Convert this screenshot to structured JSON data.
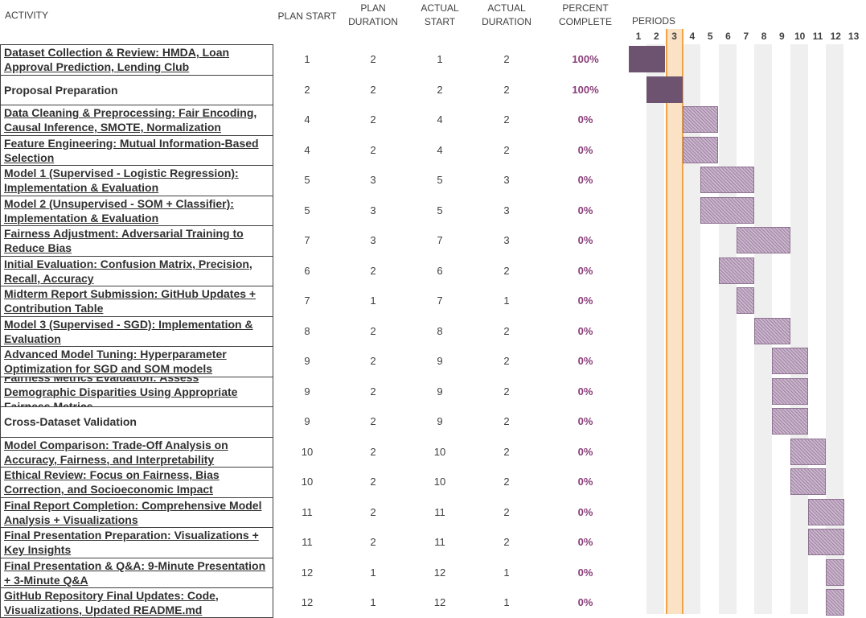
{
  "headers": {
    "activity": "ACTIVITY",
    "plan_start": "PLAN START",
    "plan_duration": "PLAN DURATION",
    "actual_start": "ACTUAL START",
    "actual_duration": "ACTUAL DURATION",
    "percent_complete": "PERCENT COMPLETE",
    "periods": "PERIODS"
  },
  "periods": [
    "1",
    "2",
    "3",
    "4",
    "5",
    "6",
    "7",
    "8",
    "9",
    "10",
    "11",
    "12",
    "13"
  ],
  "highlight_period": 3,
  "colors": {
    "complete_bar": "#6e5370",
    "plan_bar": "#cbb5cd",
    "highlight": "#fbe2c4",
    "highlight_border": "#f0a347",
    "percent_text": "#8a3e7a"
  },
  "rows": [
    {
      "activity": "Dataset Collection & Review: HMDA, Loan Approval Prediction, Lending Club",
      "plan_start": "1",
      "plan_duration": "2",
      "actual_start": "1",
      "actual_duration": "2",
      "percent": "100%"
    },
    {
      "activity": "Proposal Preparation",
      "plan_start": "2",
      "plan_duration": "2",
      "actual_start": "2",
      "actual_duration": "2",
      "percent": "100%"
    },
    {
      "activity": "Data Cleaning & Preprocessing: Fair Encoding, Causal Inference, SMOTE, Normalization",
      "plan_start": "4",
      "plan_duration": "2",
      "actual_start": "4",
      "actual_duration": "2",
      "percent": "0%"
    },
    {
      "activity": "Feature Engineering: Mutual Information-Based Selection",
      "plan_start": "4",
      "plan_duration": "2",
      "actual_start": "4",
      "actual_duration": "2",
      "percent": "0%"
    },
    {
      "activity": "Model 1 (Supervised - Logistic Regression): Implementation & Evaluation",
      "plan_start": "5",
      "plan_duration": "3",
      "actual_start": "5",
      "actual_duration": "3",
      "percent": "0%"
    },
    {
      "activity": "Model 2 (Unsupervised - SOM + Classifier): Implementation & Evaluation",
      "plan_start": "5",
      "plan_duration": "3",
      "actual_start": "5",
      "actual_duration": "3",
      "percent": "0%"
    },
    {
      "activity": "Fairness Adjustment: Adversarial Training to Reduce Bias",
      "plan_start": "7",
      "plan_duration": "3",
      "actual_start": "7",
      "actual_duration": "3",
      "percent": "0%"
    },
    {
      "activity": "Initial Evaluation: Confusion Matrix, Precision, Recall, Accuracy",
      "plan_start": "6",
      "plan_duration": "2",
      "actual_start": "6",
      "actual_duration": "2",
      "percent": "0%"
    },
    {
      "activity": "Midterm Report Submission: GitHub Updates + Contribution Table",
      "plan_start": "7",
      "plan_duration": "1",
      "actual_start": "7",
      "actual_duration": "1",
      "percent": "0%"
    },
    {
      "activity": "Model 3 (Supervised - SGD): Implementation & Evaluation",
      "plan_start": "8",
      "plan_duration": "2",
      "actual_start": "8",
      "actual_duration": "2",
      "percent": "0%"
    },
    {
      "activity": "Advanced Model Tuning: Hyperparameter Optimization for SGD and SOM models",
      "plan_start": "9",
      "plan_duration": "2",
      "actual_start": "9",
      "actual_duration": "2",
      "percent": "0%"
    },
    {
      "activity": "Fairness Metrics Evaluation: Assess Demographic Disparities Using Appropriate Fairness Metrics",
      "plan_start": "9",
      "plan_duration": "2",
      "actual_start": "9",
      "actual_duration": "2",
      "percent": "0%"
    },
    {
      "activity": "Cross-Dataset Validation",
      "plan_start": "9",
      "plan_duration": "2",
      "actual_start": "9",
      "actual_duration": "2",
      "percent": "0%"
    },
    {
      "activity": "Model Comparison: Trade-Off Analysis on Accuracy, Fairness, and Interpretability",
      "plan_start": "10",
      "plan_duration": "2",
      "actual_start": "10",
      "actual_duration": "2",
      "percent": "0%"
    },
    {
      "activity": "Ethical Review: Focus on Fairness, Bias Correction, and Socioeconomic Impact",
      "plan_start": "10",
      "plan_duration": "2",
      "actual_start": "10",
      "actual_duration": "2",
      "percent": "0%"
    },
    {
      "activity": "Final Report Completion: Comprehensive Model Analysis + Visualizations",
      "plan_start": "11",
      "plan_duration": "2",
      "actual_start": "11",
      "actual_duration": "2",
      "percent": "0%"
    },
    {
      "activity": "Final Presentation Preparation: Visualizations + Key Insights",
      "plan_start": "11",
      "plan_duration": "2",
      "actual_start": "11",
      "actual_duration": "2",
      "percent": "0%"
    },
    {
      "activity": "Final Presentation & Q&A: 9-Minute Presentation + 3-Minute Q&A",
      "plan_start": "12",
      "plan_duration": "1",
      "actual_start": "12",
      "actual_duration": "1",
      "percent": "0%"
    },
    {
      "activity": "GitHub Repository Final Updates: Code, Visualizations, Updated README.md",
      "plan_start": "12",
      "plan_duration": "1",
      "actual_start": "12",
      "actual_duration": "1",
      "percent": "0%"
    }
  ]
}
